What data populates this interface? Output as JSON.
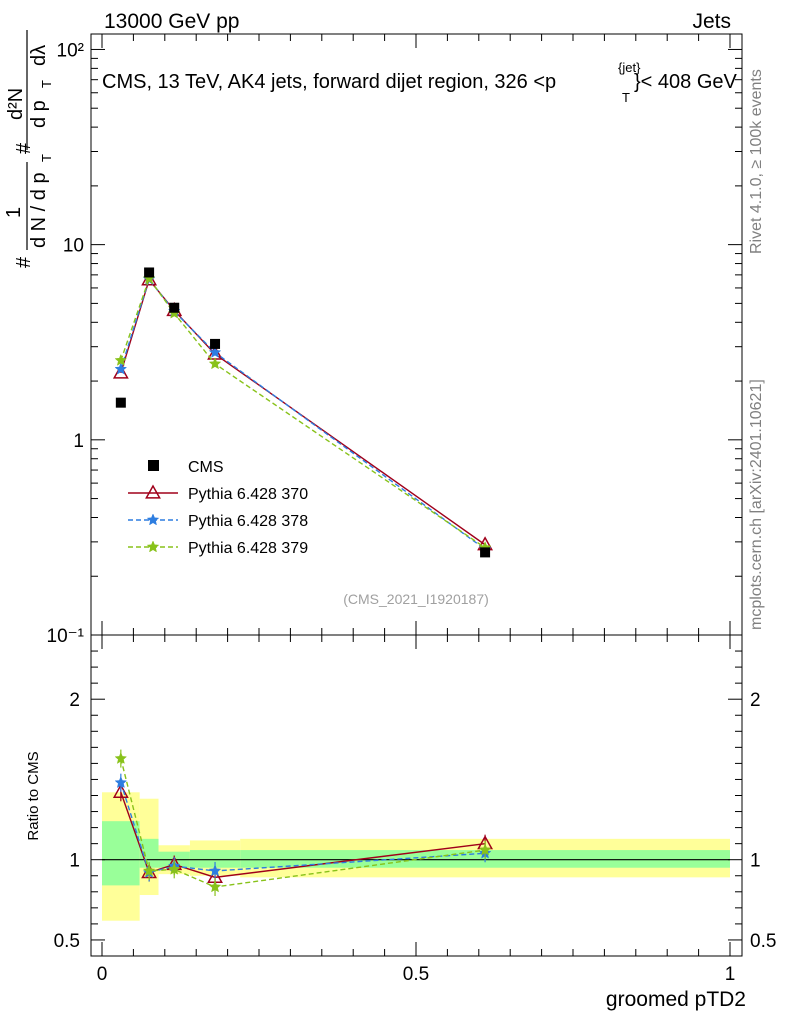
{
  "header": {
    "energy": "13000 GeV pp",
    "category": "Jets",
    "title": "CMS, 13 TeV, AK4 jets, forward dijet region, 326 <p",
    "title_sup": "{jet}",
    "title_sub": "T",
    "title_end": "}< 408 GeV",
    "analysis_id": "(CMS_2021_I1920187)"
  },
  "side_labels": {
    "rivet": "Rivet 4.1.0, ≥ 100k events",
    "mcplots": "mcplots.cern.ch [arXiv:2401.10621]"
  },
  "axis_labels": {
    "y_one": "1",
    "y_den": "d N / d p",
    "y_den_sub": "T",
    "y_hash": "#",
    "y_num_top": "d²N",
    "y_num_bot": "d p",
    "y_num_bot_sub": "T",
    "y_num_dl": "dλ",
    "ratio_ylabel": "Ratio to CMS",
    "xlabel": "groomed pTD2"
  },
  "tick_labels": {
    "y_upper": [
      "10²",
      "10",
      "1",
      "10⁻¹"
    ],
    "y_ratio": [
      "2",
      "1",
      "0.5"
    ],
    "x": [
      "0",
      "0.5",
      "1"
    ]
  },
  "legend": [
    {
      "label": "CMS",
      "color": "#000000",
      "marker": "square"
    },
    {
      "label": "Pythia 6.428 370",
      "color": "#a0001a",
      "marker": "triangle"
    },
    {
      "label": "Pythia 6.428 378",
      "color": "#2d7de0",
      "marker": "star"
    },
    {
      "label": "Pythia 6.428 379",
      "color": "#88c21a",
      "marker": "star"
    }
  ],
  "chart_data": {
    "type": "line",
    "title": "CMS, 13 TeV, AK4 jets, forward dijet region, 326 < pT{jet} < 408 GeV",
    "xlabel": "groomed pTD2",
    "ylabel": "1/(dN/dpT) d²N/(dpT dλ)",
    "xlim": [
      0,
      1
    ],
    "ylim": [
      0.1,
      120
    ],
    "yscale": "log",
    "ratio_ylim": [
      0.4,
      2.4
    ],
    "ratio_ylabel": "Ratio to CMS",
    "data": {
      "name": "CMS",
      "x": [
        0.03,
        0.075,
        0.115,
        0.18,
        0.61
      ],
      "y": [
        1.55,
        7.2,
        4.75,
        3.1,
        0.265
      ],
      "xerr": [
        0.03,
        0.015,
        0.025,
        0.04,
        0.39
      ]
    },
    "series": [
      {
        "name": "Pythia 6.428 370",
        "x": [
          0.03,
          0.075,
          0.115,
          0.18,
          0.61
        ],
        "y": [
          2.2,
          6.6,
          4.6,
          2.75,
          0.29
        ],
        "ratio": [
          1.42,
          0.92,
          0.97,
          0.89,
          1.1
        ],
        "color": "#a0001a",
        "dash": "solid"
      },
      {
        "name": "Pythia 6.428 378",
        "x": [
          0.03,
          0.075,
          0.115,
          0.18,
          0.61
        ],
        "y": [
          2.3,
          6.65,
          4.55,
          2.8,
          0.275
        ],
        "ratio": [
          1.48,
          0.92,
          0.96,
          0.93,
          1.04
        ],
        "color": "#2d7de0",
        "dash": "dashed"
      },
      {
        "name": "Pythia 6.428 379",
        "x": [
          0.03,
          0.075,
          0.115,
          0.18,
          0.61
        ],
        "y": [
          2.55,
          6.7,
          4.45,
          2.45,
          0.28
        ],
        "ratio": [
          1.63,
          0.93,
          0.94,
          0.83,
          1.06
        ],
        "color": "#88c21a",
        "dash": "dashed"
      }
    ],
    "uncertainty_bands": [
      {
        "x_low": 0.0,
        "x_high": 0.06,
        "stat_low": 0.84,
        "stat_high": 1.24,
        "total_low": 0.62,
        "total_high": 1.42
      },
      {
        "x_low": 0.06,
        "x_high": 0.09,
        "stat_low": 0.95,
        "stat_high": 1.13,
        "total_low": 0.78,
        "total_high": 1.38
      },
      {
        "x_low": 0.09,
        "x_high": 0.14,
        "stat_low": 0.95,
        "stat_high": 1.05,
        "total_low": 0.91,
        "total_high": 1.09
      },
      {
        "x_low": 0.14,
        "x_high": 0.22,
        "stat_low": 0.95,
        "stat_high": 1.06,
        "total_low": 0.9,
        "total_high": 1.12
      },
      {
        "x_low": 0.22,
        "x_high": 1.0,
        "stat_low": 0.95,
        "stat_high": 1.06,
        "total_low": 0.89,
        "total_high": 1.13
      }
    ]
  }
}
